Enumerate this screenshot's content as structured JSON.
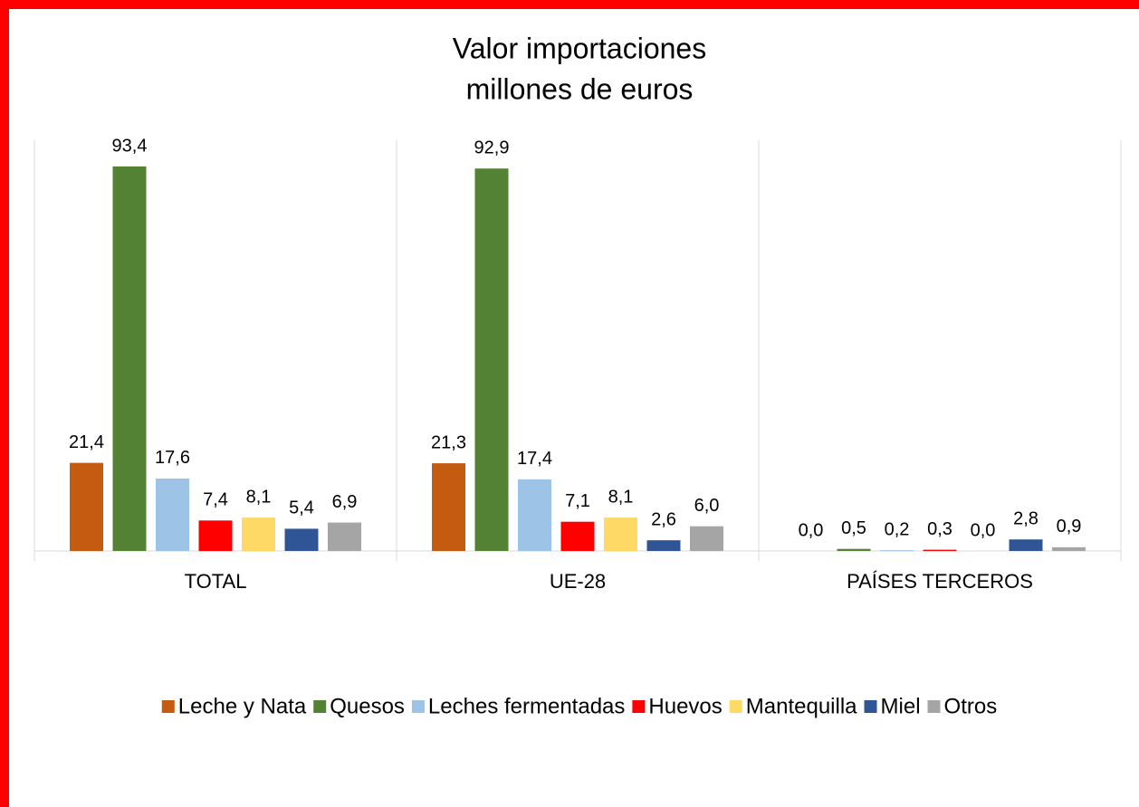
{
  "chart_data": {
    "type": "bar",
    "title": [
      "Valor importaciones",
      "millones de euros"
    ],
    "categories": [
      "TOTAL",
      "UE-28",
      "PAÍSES TERCEROS"
    ],
    "series": [
      {
        "name": "Leche y Nata",
        "color": "#c55a11",
        "values": [
          21.4,
          21.3,
          0.0
        ],
        "value_labels": [
          "21,4",
          "21,3",
          "0,0"
        ]
      },
      {
        "name": "Quesos",
        "color": "#548235",
        "values": [
          93.4,
          92.9,
          0.5
        ],
        "value_labels": [
          "93,4",
          "92,9",
          "0,5"
        ]
      },
      {
        "name": "Leches fermentadas",
        "color": "#9dc3e6",
        "values": [
          17.6,
          17.4,
          0.2
        ],
        "value_labels": [
          "17,6",
          "17,4",
          "0,2"
        ]
      },
      {
        "name": "Huevos",
        "color": "#ff0000",
        "values": [
          7.4,
          7.1,
          0.3
        ],
        "value_labels": [
          "7,4",
          "7,1",
          "0,3"
        ]
      },
      {
        "name": "Mantequilla",
        "color": "#ffd966",
        "values": [
          8.1,
          8.1,
          0.0
        ],
        "value_labels": [
          "8,1",
          "8,1",
          "0,0"
        ]
      },
      {
        "name": "Miel",
        "color": "#2f5597",
        "values": [
          5.4,
          2.6,
          2.8
        ],
        "value_labels": [
          "5,4",
          "2,6",
          "2,8"
        ]
      },
      {
        "name": "Otros",
        "color": "#a5a5a5",
        "values": [
          6.9,
          6.0,
          0.9
        ],
        "value_labels": [
          "6,9",
          "6,0",
          "0,9"
        ]
      }
    ],
    "legend": "bottom"
  }
}
